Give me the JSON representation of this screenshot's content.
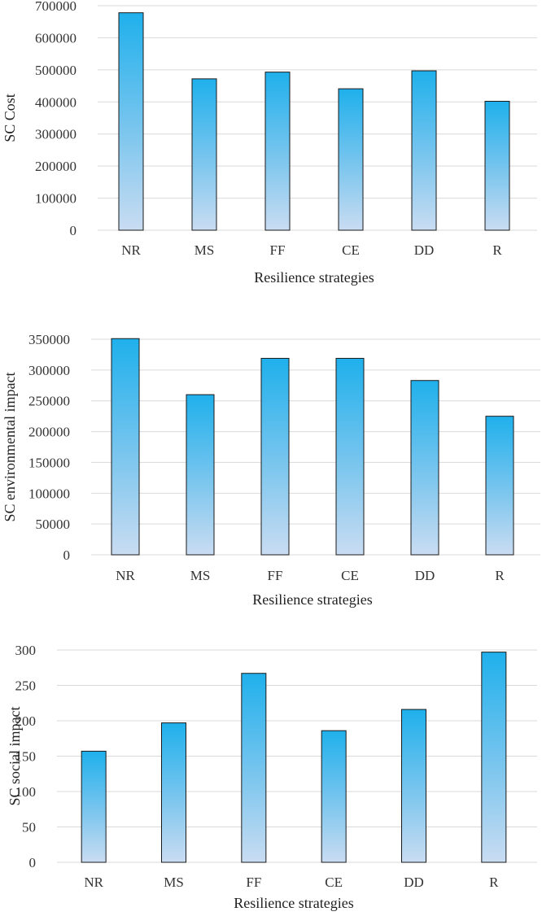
{
  "chart_data": [
    {
      "type": "bar",
      "title": "",
      "xlabel": "Resilience strategies",
      "ylabel": "SC Cost",
      "categories": [
        "NR",
        "MS",
        "FF",
        "CE",
        "DD",
        "R"
      ],
      "values": [
        678000,
        472000,
        493000,
        441000,
        497000,
        402000
      ],
      "ylim": [
        0,
        700000
      ],
      "yticks": [
        "0",
        "100000",
        "200000",
        "300000",
        "400000",
        "500000",
        "600000",
        "700000"
      ],
      "grid": true,
      "colors": {
        "top": "#1fb0ec",
        "bottom": "#c9dcf2",
        "edge": "#1a1a1a"
      }
    },
    {
      "type": "bar",
      "title": "",
      "xlabel": "Resilience strategies",
      "ylabel": "SC environmental impact",
      "categories": [
        "NR",
        "MS",
        "FF",
        "CE",
        "DD",
        "R"
      ],
      "values": [
        351000,
        260000,
        319000,
        319000,
        283000,
        225000
      ],
      "ylim": [
        0,
        350000
      ],
      "yticks": [
        "0",
        "50000",
        "100000",
        "150000",
        "200000",
        "250000",
        "300000",
        "350000"
      ],
      "grid": true,
      "colors": {
        "top": "#1fb0ec",
        "bottom": "#c9dcf2",
        "edge": "#1a1a1a"
      }
    },
    {
      "type": "bar",
      "title": "",
      "xlabel": "Resilience strategies",
      "ylabel": "SC social  impact",
      "categories": [
        "NR",
        "MS",
        "FF",
        "CE",
        "DD",
        "R"
      ],
      "values": [
        157,
        197,
        267,
        186,
        216,
        297
      ],
      "ylim": [
        0,
        300
      ],
      "yticks": [
        "0",
        "50",
        "100",
        "150",
        "200",
        "250",
        "300"
      ],
      "grid": true,
      "colors": {
        "top": "#1fb0ec",
        "bottom": "#c9dcf2",
        "edge": "#1a1a1a"
      }
    }
  ]
}
